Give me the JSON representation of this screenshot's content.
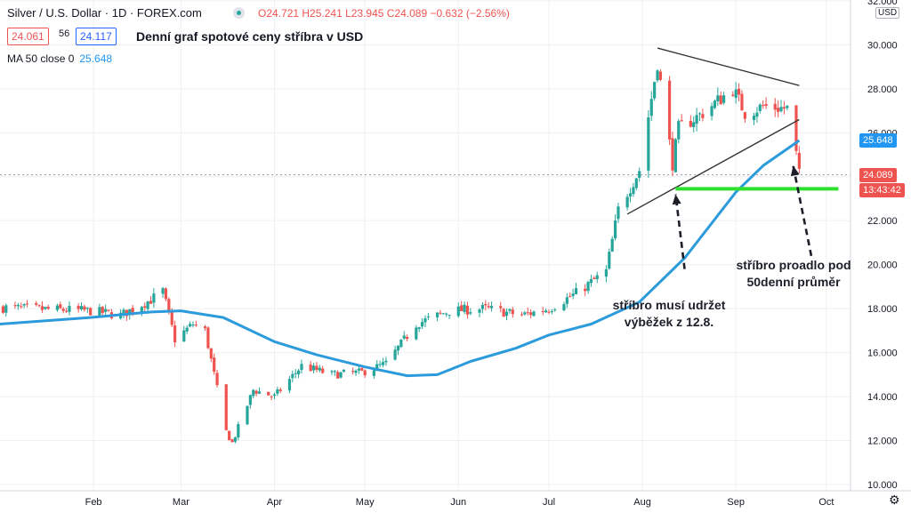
{
  "legend": {
    "title": "Silver / U.S. Dollar · 1D · FOREX.com",
    "ohlc": "O24.721 H25.241 L23.945 C24.089 −0.632 (−2.56%)",
    "bid": "24.061",
    "spread": "56",
    "ask": "24.117",
    "ma_label": "MA 50 close 0",
    "ma_value": "25.648"
  },
  "annotation_title": "Denní graf spotové ceny stříbra v USD",
  "notes": {
    "left": [
      "stříbro musí udržet",
      "výběžek z 12.8."
    ],
    "right": [
      "stříbro proadlo pod",
      "50denní průměr"
    ]
  },
  "price_tags": {
    "ma": "25.648",
    "last": "24.089",
    "countdown": "13:43:42"
  },
  "currency_label": "USD",
  "colors": {
    "up": "#26a69a",
    "down": "#ef5350",
    "ma": "#2c9bdb",
    "support": "#2ee02e",
    "trendline": "#333333",
    "grid": "#eef0f3"
  },
  "chart_data": {
    "type": "candlestick",
    "y_axis": {
      "ticks": [
        10,
        12,
        14,
        16,
        18,
        20,
        22,
        24,
        26,
        28,
        30,
        32
      ],
      "tick_labels": [
        "10.000",
        "12.000",
        "14.000",
        "16.000",
        "18.000",
        "20.000",
        "22.000",
        "24.000",
        "26.000",
        "28.000",
        "30.000",
        "32.000"
      ],
      "range": [
        10,
        32
      ]
    },
    "x_axis": {
      "labels": [
        "Feb",
        "Mar",
        "Apr",
        "May",
        "Jun",
        "Jul",
        "Aug",
        "Sep",
        "Oct"
      ],
      "range": [
        "2020-01-01",
        "2020-10-09"
      ]
    },
    "last_price": 24.089,
    "support_level": 23.45,
    "series": [
      {
        "name": "Silver / U.S. Dollar",
        "anchor_closes": [
          [
            "2020-01-02",
            18.05
          ],
          [
            "2020-01-10",
            18.0
          ],
          [
            "2020-01-20",
            17.95
          ],
          [
            "2020-01-31",
            17.9
          ],
          [
            "2020-02-10",
            17.7
          ],
          [
            "2020-02-20",
            18.4
          ],
          [
            "2020-02-24",
            18.8
          ],
          [
            "2020-02-28",
            16.6
          ],
          [
            "2020-03-05",
            17.3
          ],
          [
            "2020-03-09",
            17.0
          ],
          [
            "2020-03-12",
            15.0
          ],
          [
            "2020-03-16",
            12.4
          ],
          [
            "2020-03-18",
            11.9
          ],
          [
            "2020-03-25",
            14.3
          ],
          [
            "2020-04-01",
            14.0
          ],
          [
            "2020-04-10",
            15.4
          ],
          [
            "2020-04-20",
            15.0
          ],
          [
            "2020-04-30",
            15.1
          ],
          [
            "2020-05-08",
            15.5
          ],
          [
            "2020-05-18",
            17.3
          ],
          [
            "2020-05-29",
            17.9
          ],
          [
            "2020-06-10",
            18.0
          ],
          [
            "2020-06-22",
            17.7
          ],
          [
            "2020-07-01",
            18.0
          ],
          [
            "2020-07-10",
            18.7
          ],
          [
            "2020-07-20",
            19.7
          ],
          [
            "2020-07-24",
            22.5
          ],
          [
            "2020-07-31",
            24.3
          ],
          [
            "2020-08-06",
            29.2
          ],
          [
            "2020-08-11",
            24.6
          ],
          [
            "2020-08-13",
            26.2
          ],
          [
            "2020-08-20",
            26.8
          ],
          [
            "2020-08-31",
            28.0
          ],
          [
            "2020-09-04",
            26.9
          ],
          [
            "2020-09-10",
            27.2
          ],
          [
            "2020-09-18",
            27.1
          ],
          [
            "2020-09-21",
            25.0
          ],
          [
            "2020-09-22",
            24.089
          ]
        ]
      },
      {
        "name": "MA 50 close 0",
        "values": [
          [
            "2020-01-01",
            17.3
          ],
          [
            "2020-01-31",
            17.6
          ],
          [
            "2020-02-20",
            17.85
          ],
          [
            "2020-03-01",
            17.9
          ],
          [
            "2020-03-15",
            17.6
          ],
          [
            "2020-04-01",
            16.5
          ],
          [
            "2020-04-15",
            15.9
          ],
          [
            "2020-05-01",
            15.35
          ],
          [
            "2020-05-15",
            14.95
          ],
          [
            "2020-05-25",
            15.0
          ],
          [
            "2020-06-05",
            15.6
          ],
          [
            "2020-06-20",
            16.2
          ],
          [
            "2020-07-01",
            16.8
          ],
          [
            "2020-07-15",
            17.3
          ],
          [
            "2020-07-31",
            18.3
          ],
          [
            "2020-08-15",
            20.3
          ],
          [
            "2020-09-01",
            23.3
          ],
          [
            "2020-09-10",
            24.5
          ],
          [
            "2020-09-22",
            25.648
          ]
        ]
      }
    ],
    "drawings": {
      "triangle_upper": [
        [
          "2020-08-06",
          29.85
        ],
        [
          "2020-09-22",
          28.15
        ]
      ],
      "triangle_lower": [
        [
          "2020-07-27",
          22.3
        ],
        [
          "2020-09-22",
          26.6
        ]
      ],
      "support_line": [
        [
          "2020-08-12",
          23.45
        ],
        [
          "2020-10-05",
          23.45
        ]
      ],
      "arrow_left": [
        [
          "2020-08-15",
          19.8
        ],
        [
          "2020-08-12",
          23.2
        ]
      ],
      "arrow_right": [
        [
          "2020-09-26",
          20.4
        ],
        [
          "2020-09-20",
          24.5
        ]
      ]
    }
  }
}
